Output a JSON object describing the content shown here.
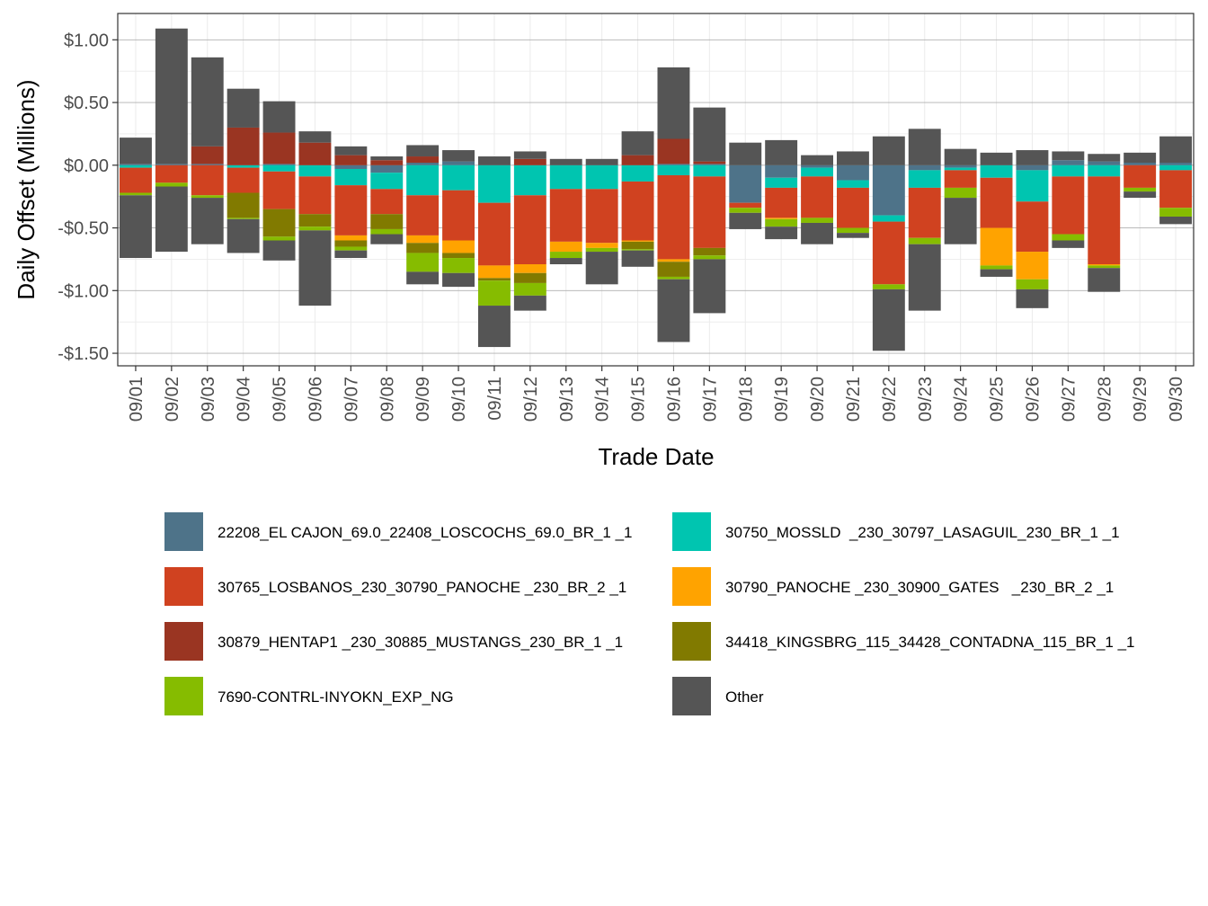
{
  "chart_data": {
    "type": "bar",
    "stacked": true,
    "xlabel": "Trade Date",
    "ylabel": "Daily Offset (Millions)",
    "ylim": [
      -1.6,
      1.21
    ],
    "yticks": [
      1.0,
      0.5,
      0.0,
      -0.5,
      -1.0,
      -1.5
    ],
    "ytick_labels": [
      "$1.00",
      "$0.50",
      "$0.00",
      "-$0.50",
      "-$1.00",
      "-$1.50"
    ],
    "categories": [
      "09/01",
      "09/02",
      "09/03",
      "09/04",
      "09/05",
      "09/06",
      "09/07",
      "09/08",
      "09/09",
      "09/10",
      "09/11",
      "09/12",
      "09/13",
      "09/14",
      "09/15",
      "09/16",
      "09/17",
      "09/18",
      "09/19",
      "09/20",
      "09/21",
      "09/22",
      "09/23",
      "09/24",
      "09/25",
      "09/26",
      "09/27",
      "09/28",
      "09/29",
      "09/30"
    ],
    "legend_position": "bottom",
    "series": [
      {
        "name": "22208_EL CAJON_69.0_22408_LOSCOCHS_69.0_BR_1 _1",
        "color": "#4E7389",
        "values": [
          0.01,
          0.01,
          0.01,
          0,
          0.01,
          0,
          -0.03,
          -0.06,
          0.02,
          0.03,
          0,
          0,
          0,
          0,
          0,
          0.01,
          0.01,
          -0.3,
          -0.1,
          -0.02,
          -0.12,
          -0.4,
          -0.04,
          -0.02,
          0,
          -0.04,
          0.04,
          0.03,
          0.02,
          0.02
        ]
      },
      {
        "name": "30750_MOSSLD  _230_30797_LASAGUIL_230_BR_1 _1",
        "color": "#00C5B0",
        "values": [
          -0.02,
          0,
          0,
          -0.02,
          -0.05,
          -0.09,
          -0.13,
          -0.13,
          -0.24,
          -0.2,
          -0.3,
          -0.24,
          -0.19,
          -0.19,
          -0.13,
          -0.08,
          -0.09,
          0,
          -0.08,
          -0.07,
          -0.06,
          -0.05,
          -0.14,
          -0.02,
          -0.1,
          -0.25,
          -0.09,
          -0.09,
          0,
          -0.04
        ]
      },
      {
        "name": "30765_LOSBANOS_230_30790_PANOCHE _230_BR_2 _1",
        "color": "#D04220",
        "values": [
          -0.2,
          -0.14,
          -0.24,
          -0.2,
          -0.3,
          -0.3,
          -0.4,
          -0.2,
          -0.32,
          -0.4,
          -0.5,
          -0.55,
          -0.42,
          -0.43,
          -0.47,
          -0.67,
          -0.57,
          -0.04,
          -0.24,
          -0.33,
          -0.32,
          -0.5,
          -0.4,
          -0.14,
          -0.4,
          -0.4,
          -0.46,
          -0.7,
          -0.18,
          -0.3
        ]
      },
      {
        "name": "30790_PANOCHE _230_30900_GATES   _230_BR_2 _1",
        "color": "#FFA300",
        "values": [
          0,
          0,
          0,
          0,
          0,
          0,
          -0.04,
          0,
          -0.06,
          -0.1,
          -0.1,
          -0.07,
          -0.08,
          -0.04,
          -0.01,
          -0.02,
          0,
          0,
          -0.01,
          0,
          0,
          0,
          0,
          0,
          -0.3,
          -0.22,
          0,
          -0.01,
          0,
          0
        ]
      },
      {
        "name": "30879_HENTAP1 _230_30885_MUSTANGS_230_BR_1 _1",
        "color": "#9A3522",
        "values": [
          0,
          0,
          0.14,
          0.3,
          0.25,
          0.18,
          0.08,
          0.04,
          0.05,
          0,
          0,
          0.05,
          0,
          0,
          0.08,
          0.2,
          0.02,
          0,
          0,
          0,
          0,
          0,
          0,
          0,
          0,
          0,
          0,
          0,
          0,
          0
        ]
      },
      {
        "name": "34418_KINGSBRG_115_34428_CONTADNA_115_BR_1 _1",
        "color": "#817A00",
        "values": [
          0,
          0,
          0,
          -0.2,
          -0.22,
          -0.1,
          -0.05,
          -0.12,
          -0.08,
          -0.04,
          -0.02,
          -0.08,
          0,
          0,
          -0.06,
          -0.12,
          -0.06,
          0,
          0,
          0,
          0,
          0,
          0,
          0,
          0,
          0,
          0,
          0,
          0,
          0
        ]
      },
      {
        "name": "7690-CONTRL-INYOKN_EXP_NG",
        "color": "#86BC00",
        "values": [
          -0.02,
          -0.03,
          -0.02,
          -0.01,
          -0.03,
          -0.03,
          -0.03,
          -0.04,
          -0.15,
          -0.12,
          -0.2,
          -0.1,
          -0.05,
          -0.03,
          -0.01,
          -0.02,
          -0.03,
          -0.04,
          -0.06,
          -0.04,
          -0.04,
          -0.04,
          -0.05,
          -0.08,
          -0.03,
          -0.08,
          -0.05,
          -0.02,
          -0.03,
          -0.07
        ]
      },
      {
        "name": "Other",
        "color": "#555555",
        "values": [
          0.21,
          1.08,
          0.71,
          0.31,
          0.25,
          0.09,
          0.07,
          0.03,
          0.09,
          0.09,
          0.07,
          0.06,
          0.05,
          0.05,
          0.19,
          0.57,
          0.43,
          0.18,
          0.2,
          0.08,
          0.11,
          0.23,
          0.29,
          0.13,
          0.1,
          0.12,
          0.07,
          0.06,
          0.08,
          0.21
        ]
      },
      {
        "name": "Other",
        "color": "#555555",
        "legend": false,
        "values": [
          -0.5,
          -0.52,
          -0.37,
          -0.27,
          -0.16,
          -0.6,
          -0.06,
          -0.08,
          -0.1,
          -0.11,
          -0.33,
          -0.12,
          -0.05,
          -0.26,
          -0.13,
          -0.5,
          -0.43,
          -0.13,
          -0.1,
          -0.17,
          -0.04,
          -0.49,
          -0.53,
          -0.37,
          -0.06,
          -0.15,
          -0.06,
          -0.19,
          -0.05,
          -0.06
        ]
      }
    ]
  }
}
